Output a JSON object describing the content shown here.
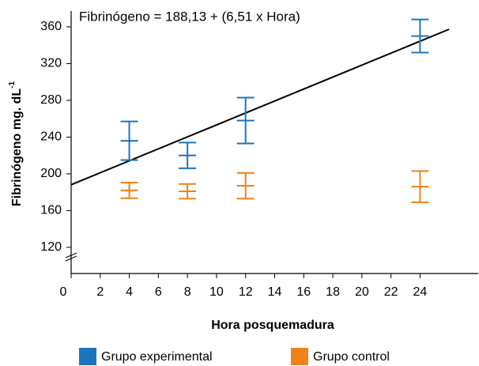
{
  "chart_data": {
    "type": "errorbar",
    "annotation": "Fibrinógeno = 188,13 + (6,51 x Hora)",
    "x_label": "Hora posquemadura",
    "y_label": "Fibrinógeno mg. dL",
    "y_label_sup": "-1",
    "xlim": [
      0,
      28
    ],
    "xticks": [
      0,
      2,
      4,
      6,
      8,
      10,
      12,
      14,
      16,
      18,
      20,
      22,
      24
    ],
    "ylim": [
      91.5,
      377
    ],
    "yticks": [
      120,
      160,
      200,
      240,
      280,
      320,
      360
    ],
    "fit": {
      "intercept": 188.13,
      "slope": 6.51,
      "x_range": [
        0,
        26
      ],
      "color": "#000000"
    },
    "series": [
      {
        "name": "Grupo experimental",
        "color": "#1b75bb",
        "x": [
          4,
          8,
          12,
          24
        ],
        "values": [
          236,
          220,
          258,
          350
        ],
        "errors": [
          21,
          14,
          25,
          18
        ]
      },
      {
        "name": "Grupo control",
        "color": "#f08119",
        "x": [
          4,
          8,
          12,
          24
        ],
        "values": [
          182,
          181,
          187,
          186
        ],
        "errors": [
          8.5,
          8,
          14,
          17
        ]
      }
    ]
  }
}
